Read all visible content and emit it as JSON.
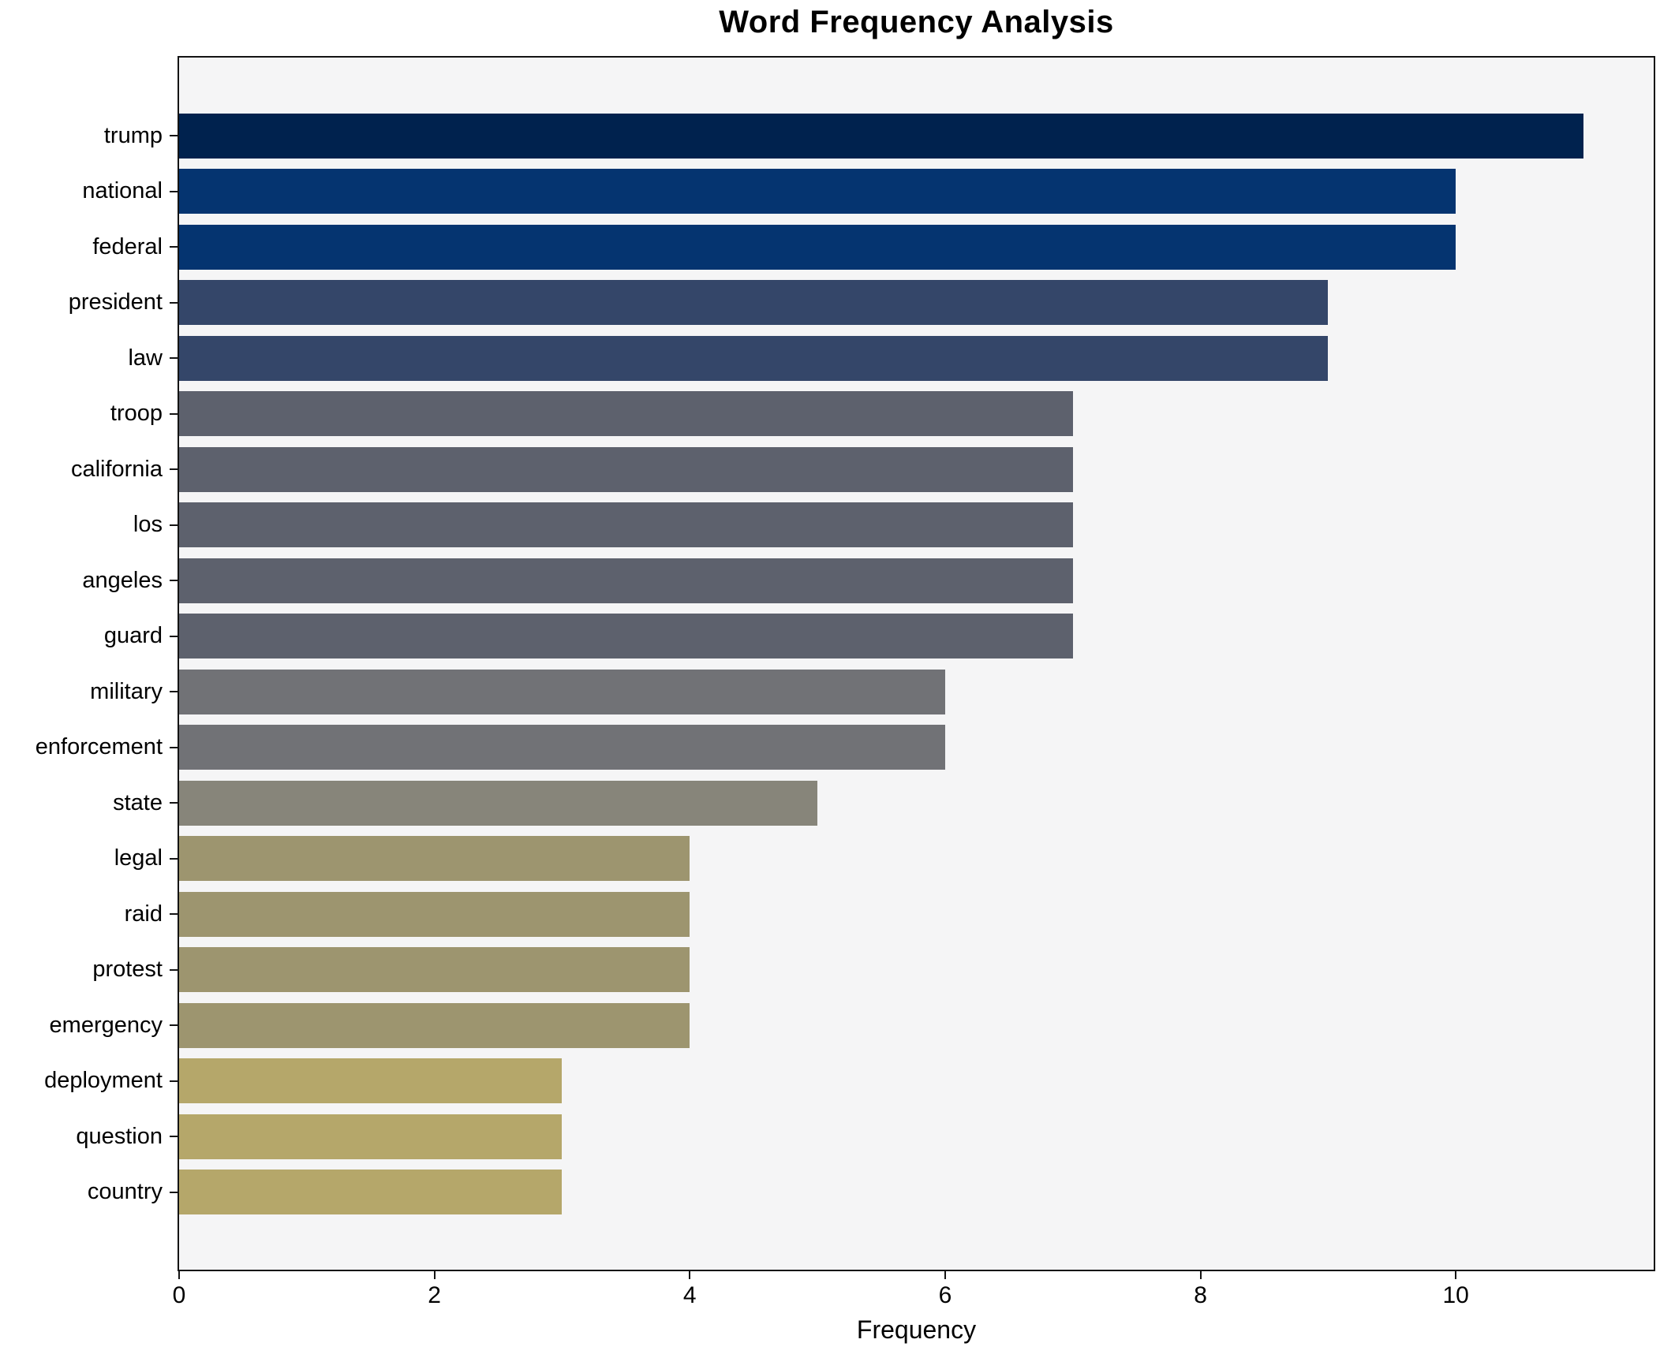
{
  "chart_data": {
    "type": "bar",
    "orientation": "horizontal",
    "title": "Word Frequency Analysis",
    "xlabel": "Frequency",
    "ylabel": "",
    "xlim": [
      0,
      11.55
    ],
    "xticks": [
      "0",
      "2",
      "4",
      "6",
      "8",
      "10"
    ],
    "xtick_values": [
      0,
      2,
      4,
      6,
      8,
      10
    ],
    "grid": false,
    "legend": false,
    "colors": {
      "figure_background": "#ffffff",
      "plot_background": "#f5f5f6",
      "spine": "#141414",
      "text": "#000000"
    },
    "categories": [
      "trump",
      "national",
      "federal",
      "president",
      "law",
      "troop",
      "california",
      "los",
      "angeles",
      "guard",
      "military",
      "enforcement",
      "state",
      "legal",
      "raid",
      "protest",
      "emergency",
      "deployment",
      "question",
      "country"
    ],
    "values": [
      11,
      10,
      10,
      9,
      9,
      7,
      7,
      7,
      7,
      7,
      6,
      6,
      5,
      4,
      4,
      4,
      4,
      3,
      3,
      3
    ],
    "bar_colors": [
      "#00224e",
      "#053470",
      "#053470",
      "#344669",
      "#344669",
      "#5d616d",
      "#5d616d",
      "#5d616d",
      "#5d616d",
      "#5d616d",
      "#717276",
      "#717276",
      "#87857a",
      "#9d956f",
      "#9d956f",
      "#9d956f",
      "#9d956f",
      "#b5a76a",
      "#b5a76a",
      "#b5a76a"
    ]
  }
}
